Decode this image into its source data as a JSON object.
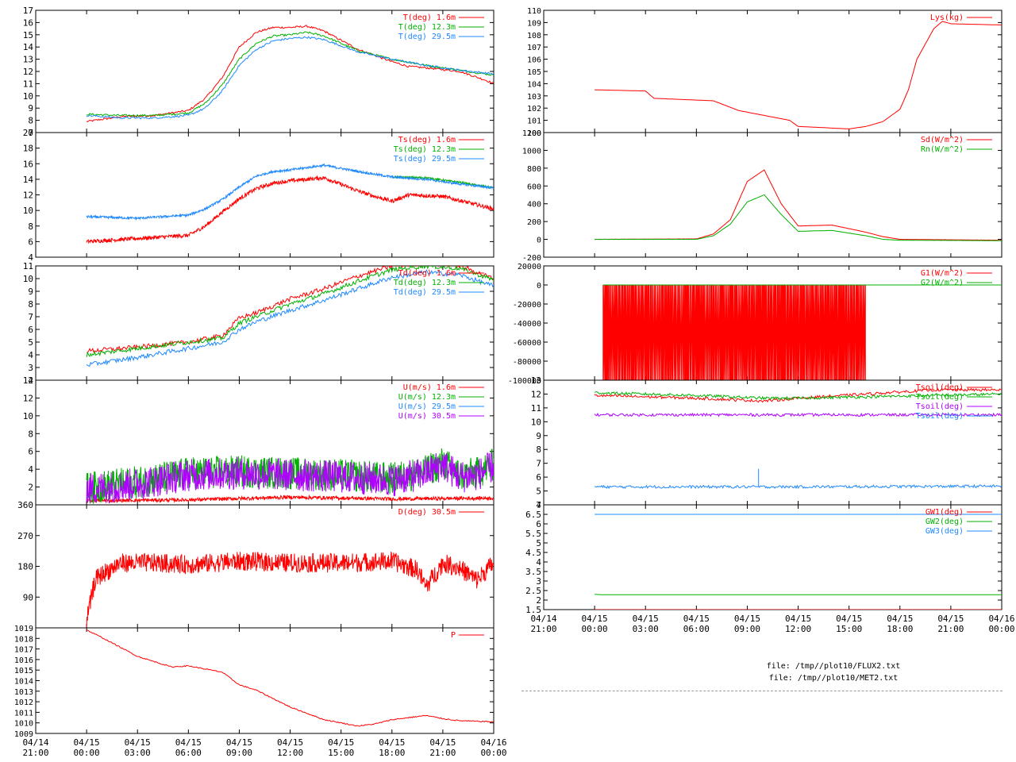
{
  "colors": {
    "red": "#ff0000",
    "green": "#00b000",
    "blue": "#1e88ff",
    "purple": "#b000ff",
    "frame": "#000000"
  },
  "time_axis": {
    "start": "04/14 21:00",
    "end": "04/16 00:00",
    "ticks": [
      {
        "date": "04/14",
        "time": "21:00"
      },
      {
        "date": "04/15",
        "time": "00:00"
      },
      {
        "date": "04/15",
        "time": "03:00"
      },
      {
        "date": "04/15",
        "time": "06:00"
      },
      {
        "date": "04/15",
        "time": "09:00"
      },
      {
        "date": "04/15",
        "time": "12:00"
      },
      {
        "date": "04/15",
        "time": "15:00"
      },
      {
        "date": "04/15",
        "time": "18:00"
      },
      {
        "date": "04/15",
        "time": "21:00"
      },
      {
        "date": "04/16",
        "time": "00:00"
      }
    ]
  },
  "chart_data": [
    {
      "id": "air-temperature",
      "type": "line",
      "ylim": [
        7,
        17
      ],
      "yticks": [
        7,
        8,
        9,
        10,
        11,
        12,
        13,
        14,
        15,
        16,
        17
      ],
      "series": [
        {
          "name": "T(deg)  1.6m",
          "color": "red",
          "x": [
            "04/15 00:00",
            "04/15 02:00",
            "04/15 04:00",
            "04/15 06:00",
            "04/15 07:00",
            "04/15 08:00",
            "04/15 09:00",
            "04/15 10:00",
            "04/15 11:00",
            "04/15 12:00",
            "04/15 13:00",
            "04/15 14:00",
            "04/15 16:00",
            "04/15 18:00",
            "04/15 19:00",
            "04/15 20:00",
            "04/15 22:00",
            "04/15 23:30",
            "04/16 00:00"
          ],
          "y": [
            7.9,
            8.3,
            8.4,
            8.8,
            9.8,
            11.5,
            14.0,
            15.2,
            15.6,
            15.6,
            15.7,
            15.3,
            13.8,
            12.8,
            12.4,
            12.3,
            12.0,
            11.3,
            11.0
          ]
        },
        {
          "name": "T(deg) 12.3m",
          "color": "green",
          "x": [
            "04/15 00:00",
            "04/15 02:00",
            "04/15 04:00",
            "04/15 06:00",
            "04/15 07:00",
            "04/15 08:00",
            "04/15 09:00",
            "04/15 10:00",
            "04/15 11:00",
            "04/15 12:00",
            "04/15 13:00",
            "04/15 14:00",
            "04/15 16:00",
            "04/15 18:00",
            "04/15 20:00",
            "04/15 22:00",
            "04/16 00:00"
          ],
          "y": [
            8.5,
            8.4,
            8.4,
            8.6,
            9.4,
            10.9,
            13.0,
            14.3,
            14.9,
            15.0,
            15.2,
            14.9,
            13.7,
            13.0,
            12.5,
            12.1,
            11.7
          ]
        },
        {
          "name": "T(deg) 29.5m",
          "color": "blue",
          "x": [
            "04/15 00:00",
            "04/15 02:00",
            "04/15 04:00",
            "04/15 06:00",
            "04/15 07:00",
            "04/15 08:00",
            "04/15 09:00",
            "04/15 10:00",
            "04/15 11:00",
            "04/15 12:00",
            "04/15 13:00",
            "04/15 14:00",
            "04/15 16:00",
            "04/15 18:00",
            "04/15 20:00",
            "04/15 22:00",
            "04/16 00:00"
          ],
          "y": [
            8.4,
            8.2,
            8.2,
            8.4,
            9.0,
            10.4,
            12.5,
            13.8,
            14.5,
            14.7,
            14.8,
            14.6,
            13.6,
            13.0,
            12.5,
            12.1,
            11.8
          ]
        }
      ]
    },
    {
      "id": "sonic-temperature",
      "type": "line",
      "ylim": [
        4,
        20
      ],
      "yticks": [
        4,
        6,
        8,
        10,
        12,
        14,
        16,
        18,
        20
      ],
      "series": [
        {
          "name": "Ts(deg)  1.6m",
          "color": "red",
          "x": [
            "04/15 00:00",
            "04/15 03:00",
            "04/15 06:00",
            "04/15 07:00",
            "04/15 08:00",
            "04/15 09:00",
            "04/15 10:00",
            "04/15 11:00",
            "04/15 12:00",
            "04/15 14:00",
            "04/15 16:00",
            "04/15 17:00",
            "04/15 18:00",
            "04/15 19:00",
            "04/15 21:00",
            "04/16 00:00"
          ],
          "y": [
            6.0,
            6.4,
            6.8,
            8.0,
            9.8,
            11.5,
            12.8,
            13.5,
            13.8,
            14.2,
            12.5,
            11.8,
            11.2,
            12.0,
            11.8,
            10.2
          ]
        },
        {
          "name": "Ts(deg) 12.3m",
          "color": "green",
          "x": [
            "04/15 18:00",
            "04/15 20:00",
            "04/15 22:00",
            "04/16 00:00"
          ],
          "y": [
            14.3,
            14.2,
            13.6,
            12.9
          ]
        },
        {
          "name": "Ts(deg) 29.5m",
          "color": "blue",
          "x": [
            "04/15 00:00",
            "04/15 03:00",
            "04/15 06:00",
            "04/15 07:00",
            "04/15 08:00",
            "04/15 09:00",
            "04/15 10:00",
            "04/15 11:00",
            "04/15 12:00",
            "04/15 14:00",
            "04/15 16:00",
            "04/15 18:00",
            "04/15 20:00",
            "04/15 22:00",
            "04/16 00:00"
          ],
          "y": [
            9.2,
            9.0,
            9.4,
            10.2,
            11.4,
            13.0,
            14.4,
            15.0,
            15.2,
            15.8,
            15.0,
            14.3,
            14.0,
            13.4,
            12.9
          ]
        }
      ]
    },
    {
      "id": "dew-point",
      "type": "line",
      "ylim": [
        2,
        11
      ],
      "yticks": [
        2,
        3,
        4,
        5,
        6,
        7,
        8,
        9,
        10,
        11
      ],
      "series": [
        {
          "name": "Td(deg)  1.6m",
          "color": "red",
          "x": [
            "04/15 00:00",
            "04/15 03:00",
            "04/15 06:00",
            "04/15 08:00",
            "04/15 09:00",
            "04/15 10:00",
            "04/15 12:00",
            "04/15 14:00",
            "04/15 16:00",
            "04/15 18:00",
            "04/15 20:00",
            "04/15 22:00",
            "04/16 00:00"
          ],
          "y": [
            4.3,
            4.6,
            5.0,
            5.5,
            6.9,
            7.3,
            8.4,
            9.2,
            10.2,
            11.0,
            11.2,
            11.0,
            10.0
          ]
        },
        {
          "name": "Td(deg) 12.3m",
          "color": "green",
          "x": [
            "04/15 00:00",
            "04/15 03:00",
            "04/15 06:00",
            "04/15 08:00",
            "04/15 09:00",
            "04/15 10:00",
            "04/15 12:00",
            "04/15 14:00",
            "04/15 16:00",
            "04/15 18:00",
            "04/15 20:00",
            "04/15 22:00",
            "04/16 00:00"
          ],
          "y": [
            4.0,
            4.5,
            5.0,
            5.3,
            6.5,
            7.0,
            8.0,
            8.8,
            9.8,
            10.7,
            11.0,
            10.8,
            9.9
          ]
        },
        {
          "name": "Td(deg) 29.5m",
          "color": "blue",
          "x": [
            "04/15 00:00",
            "04/15 03:00",
            "04/15 06:00",
            "04/15 08:00",
            "04/15 09:00",
            "04/15 10:00",
            "04/15 12:00",
            "04/15 14:00",
            "04/15 16:00",
            "04/15 18:00",
            "04/15 20:00",
            "04/15 22:00",
            "04/16 00:00"
          ],
          "y": [
            3.2,
            3.8,
            4.5,
            5.0,
            6.0,
            6.6,
            7.5,
            8.3,
            9.2,
            10.1,
            10.5,
            10.3,
            9.4
          ]
        }
      ]
    },
    {
      "id": "wind-speed",
      "type": "line",
      "ylim": [
        0,
        14
      ],
      "yticks": [
        2,
        4,
        6,
        8,
        10,
        12,
        14
      ],
      "series": [
        {
          "name": "U(m/s)  1.6m",
          "color": "red",
          "x": [
            "04/15 00:00",
            "04/15 06:00",
            "04/15 12:00",
            "04/15 18:00",
            "04/16 00:00"
          ],
          "y": [
            0.4,
            0.5,
            0.8,
            0.6,
            0.7
          ]
        },
        {
          "name": "U(m/s) 12.3m",
          "color": "green",
          "x": [
            "04/15 00:00",
            "04/15 03:00",
            "04/15 06:00",
            "04/15 09:00",
            "04/15 12:00",
            "04/15 15:00",
            "04/15 18:00",
            "04/15 20:00",
            "04/15 21:00",
            "04/15 22:00",
            "04/15 23:00",
            "04/16 00:00"
          ],
          "y": [
            1.3,
            2.0,
            3.0,
            3.2,
            3.0,
            2.8,
            2.4,
            3.2,
            4.2,
            2.8,
            3.0,
            4.0
          ]
        },
        {
          "name": "U(m/s) 29.5m",
          "color": "blue",
          "x": [],
          "y": []
        },
        {
          "name": "U(m/s) 30.5m",
          "color": "purple",
          "x": [
            "04/15 00:00",
            "04/15 03:00",
            "04/15 06:00",
            "04/15 09:00",
            "04/15 12:00",
            "04/15 15:00",
            "04/15 18:00",
            "04/15 20:00",
            "04/15 21:00",
            "04/15 22:00",
            "04/15 23:00",
            "04/16 00:00"
          ],
          "y": [
            1.2,
            1.8,
            2.8,
            3.0,
            2.8,
            2.6,
            2.2,
            3.0,
            4.0,
            2.6,
            2.8,
            3.8
          ]
        }
      ]
    },
    {
      "id": "wind-direction",
      "type": "line",
      "ylim": [
        0,
        360
      ],
      "yticks": [
        90,
        180,
        270,
        360
      ],
      "series": [
        {
          "name": "D(deg)  30.5m",
          "color": "red",
          "x": [
            "04/15 00:00",
            "04/15 00:30",
            "04/15 01:00",
            "04/15 02:00",
            "04/15 04:00",
            "04/15 06:00",
            "04/15 09:00",
            "04/15 12:00",
            "04/15 15:00",
            "04/15 18:00",
            "04/15 19:30",
            "04/15 20:00",
            "04/15 21:00",
            "04/15 22:00",
            "04/15 23:00",
            "04/16 00:00"
          ],
          "y": [
            20,
            140,
            160,
            190,
            190,
            185,
            195,
            190,
            190,
            195,
            170,
            120,
            190,
            175,
            140,
            190
          ]
        }
      ]
    },
    {
      "id": "pressure",
      "type": "line",
      "ylim": [
        1009,
        1019
      ],
      "yticks": [
        1009,
        1010,
        1011,
        1012,
        1013,
        1014,
        1015,
        1016,
        1017,
        1018,
        1019
      ],
      "series": [
        {
          "name": "P",
          "color": "red",
          "x": [
            "04/15 00:00",
            "04/15 01:00",
            "04/15 03:00",
            "04/15 05:00",
            "04/15 06:00",
            "04/15 08:00",
            "04/15 09:00",
            "04/15 10:00",
            "04/15 12:00",
            "04/15 14:00",
            "04/15 16:00",
            "04/15 17:00",
            "04/15 18:00",
            "04/15 20:00",
            "04/15 21:00",
            "04/15 22:00",
            "04/16 00:00"
          ],
          "y": [
            1018.8,
            1018.0,
            1016.3,
            1015.3,
            1015.4,
            1014.8,
            1013.6,
            1013.1,
            1011.5,
            1010.3,
            1009.7,
            1009.9,
            1010.3,
            1010.7,
            1010.4,
            1010.2,
            1010.1
          ]
        }
      ]
    },
    {
      "id": "lysimeter",
      "type": "line",
      "ylim": [
        100,
        110
      ],
      "yticks": [
        100,
        101,
        102,
        103,
        104,
        105,
        106,
        107,
        108,
        109,
        110
      ],
      "series": [
        {
          "name": "Lys(kg)",
          "color": "red",
          "x": [
            "04/15 00:00",
            "04/15 03:00",
            "04/15 03:30",
            "04/15 07:00",
            "04/15 08:30",
            "04/15 11:30",
            "04/15 12:00",
            "04/15 15:00",
            "04/15 16:00",
            "04/15 17:00",
            "04/15 18:00",
            "04/15 18:30",
            "04/15 19:00",
            "04/15 20:00",
            "04/15 20:30",
            "04/15 21:00",
            "04/16 00:00"
          ],
          "y": [
            103.5,
            103.4,
            102.8,
            102.6,
            101.8,
            101.0,
            100.5,
            100.3,
            100.5,
            100.9,
            101.9,
            103.5,
            106.0,
            108.5,
            109.1,
            108.9,
            108.8
          ]
        }
      ]
    },
    {
      "id": "radiation",
      "type": "line",
      "ylim": [
        -200,
        1200
      ],
      "yticks": [
        -200,
        0,
        200,
        400,
        600,
        800,
        1000,
        1200
      ],
      "series": [
        {
          "name": "Sd(W/m^2)",
          "color": "red",
          "x": [
            "04/15 00:00",
            "04/15 06:00",
            "04/15 07:00",
            "04/15 08:00",
            "04/15 09:00",
            "04/15 10:00",
            "04/15 11:00",
            "04/15 12:00",
            "04/15 14:00",
            "04/15 16:00",
            "04/15 17:00",
            "04/15 18:00",
            "04/16 00:00"
          ],
          "y": [
            0,
            5,
            60,
            220,
            650,
            780,
            400,
            150,
            160,
            80,
            30,
            0,
            -10
          ]
        },
        {
          "name": "Rn(W/m^2)",
          "color": "green",
          "x": [
            "04/15 00:00",
            "04/15 06:00",
            "04/15 07:00",
            "04/15 08:00",
            "04/15 09:00",
            "04/15 10:00",
            "04/15 11:00",
            "04/15 12:00",
            "04/15 14:00",
            "04/15 16:00",
            "04/15 17:00",
            "04/15 18:00",
            "04/16 00:00"
          ],
          "y": [
            0,
            0,
            40,
            170,
            420,
            500,
            280,
            90,
            100,
            40,
            0,
            -10,
            -15
          ]
        }
      ]
    },
    {
      "id": "ground-heat-flux",
      "type": "line",
      "ylim": [
        -100000,
        20000
      ],
      "yticks": [
        -100000,
        -80000,
        -60000,
        -40000,
        -20000,
        0,
        20000
      ],
      "series": [
        {
          "name": "G1(W/m^2)",
          "color": "red",
          "x": [
            "04/15 00:30",
            "04/15 16:00"
          ],
          "y": [
            0,
            -100000
          ]
        },
        {
          "name": "G2(W/m^2)",
          "color": "green",
          "x": [
            "04/15 00:30",
            "04/16 00:00"
          ],
          "y": [
            0,
            0
          ]
        }
      ]
    },
    {
      "id": "soil-temperature",
      "type": "line",
      "ylim": [
        4,
        13
      ],
      "yticks": [
        4,
        5,
        6,
        7,
        8,
        9,
        10,
        11,
        12,
        13
      ],
      "series": [
        {
          "name": "Tsoil(deg)",
          "color": "red",
          "x": [
            "04/15 00:00",
            "04/15 06:00",
            "04/15 10:00",
            "04/15 12:00",
            "04/15 16:00",
            "04/15 20:00",
            "04/16 00:00"
          ],
          "y": [
            11.9,
            11.7,
            11.5,
            11.7,
            12.0,
            12.3,
            12.3
          ]
        },
        {
          "name": "Tsoil(deg)",
          "color": "green",
          "x": [
            "04/15 00:00",
            "04/15 06:00",
            "04/15 10:00",
            "04/15 12:00",
            "04/15 16:00",
            "04/15 20:00",
            "04/16 00:00"
          ],
          "y": [
            12.1,
            11.9,
            11.7,
            11.7,
            11.8,
            11.9,
            12.0
          ]
        },
        {
          "name": "Tsoil(deg)",
          "color": "purple",
          "x": [
            "04/15 00:00",
            "04/15 12:00",
            "04/16 00:00"
          ],
          "y": [
            10.5,
            10.5,
            10.5
          ]
        },
        {
          "name": "Tsoil(deg)",
          "color": "blue",
          "x": [
            "04/15 00:00",
            "04/15 12:00",
            "04/16 00:00"
          ],
          "y": [
            5.3,
            5.3,
            5.35
          ]
        }
      ]
    },
    {
      "id": "groundwater",
      "type": "line",
      "ylim": [
        1.5,
        7
      ],
      "yticks": [
        1.5,
        2,
        2.5,
        3,
        3.5,
        4,
        4.5,
        5,
        5.5,
        6,
        6.5,
        7
      ],
      "series": [
        {
          "name": "GW1(deg)",
          "color": "red",
          "x": [
            "04/15 00:00",
            "04/16 00:00"
          ],
          "y": [
            1.5,
            1.5
          ]
        },
        {
          "name": "GW2(deg)",
          "color": "green",
          "x": [
            "04/15 00:00",
            "04/15 00:30",
            "04/16 00:00"
          ],
          "y": [
            2.3,
            2.28,
            2.28
          ]
        },
        {
          "name": "GW3(deg)",
          "color": "blue",
          "x": [
            "04/15 00:00",
            "04/16 00:00"
          ],
          "y": [
            6.5,
            6.5
          ]
        }
      ]
    }
  ],
  "files": [
    "file: /tmp//plot10/FLUX2.txt",
    "file: /tmp//plot10/MET2.txt"
  ]
}
